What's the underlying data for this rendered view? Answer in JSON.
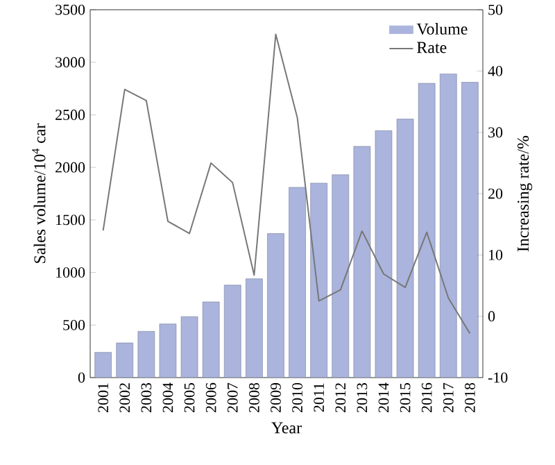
{
  "chart_data": {
    "type": "bar",
    "xlabel": "Year",
    "ylabel": "Sales volume/10$^{4}$ car",
    "y2label": "Increasing rate/%",
    "categories": [
      "2001",
      "2002",
      "2003",
      "2004",
      "2005",
      "2006",
      "2007",
      "2008",
      "2009",
      "2010",
      "2011",
      "2012",
      "2013",
      "2014",
      "2015",
      "2016",
      "2017",
      "2018"
    ],
    "series": [
      {
        "name": "Volume",
        "color": "#aab4dc",
        "values": [
          240,
          330,
          440,
          510,
          580,
          720,
          880,
          940,
          1370,
          1810,
          1850,
          1930,
          2200,
          2350,
          2460,
          2800,
          2890,
          2810
        ]
      },
      {
        "name": "Rate",
        "type": "line",
        "axis": "y2",
        "color": "#777777",
        "values": [
          14,
          37,
          35.2,
          15.5,
          13.5,
          25,
          21.8,
          6.7,
          46,
          32.4,
          2.5,
          4.3,
          13.9,
          6.9,
          4.7,
          13.7,
          3,
          -2.8
        ]
      }
    ],
    "ylim": [
      0,
      3500
    ],
    "yticks": [
      0,
      500,
      1000,
      1500,
      2000,
      2500,
      3000,
      3500
    ],
    "y2lim": [
      -10,
      50
    ],
    "y2ticks": [
      -10,
      0,
      10,
      20,
      30,
      40,
      50
    ],
    "legend": "top right",
    "grid": false,
    "marker": "none",
    "line_style": "solid"
  }
}
